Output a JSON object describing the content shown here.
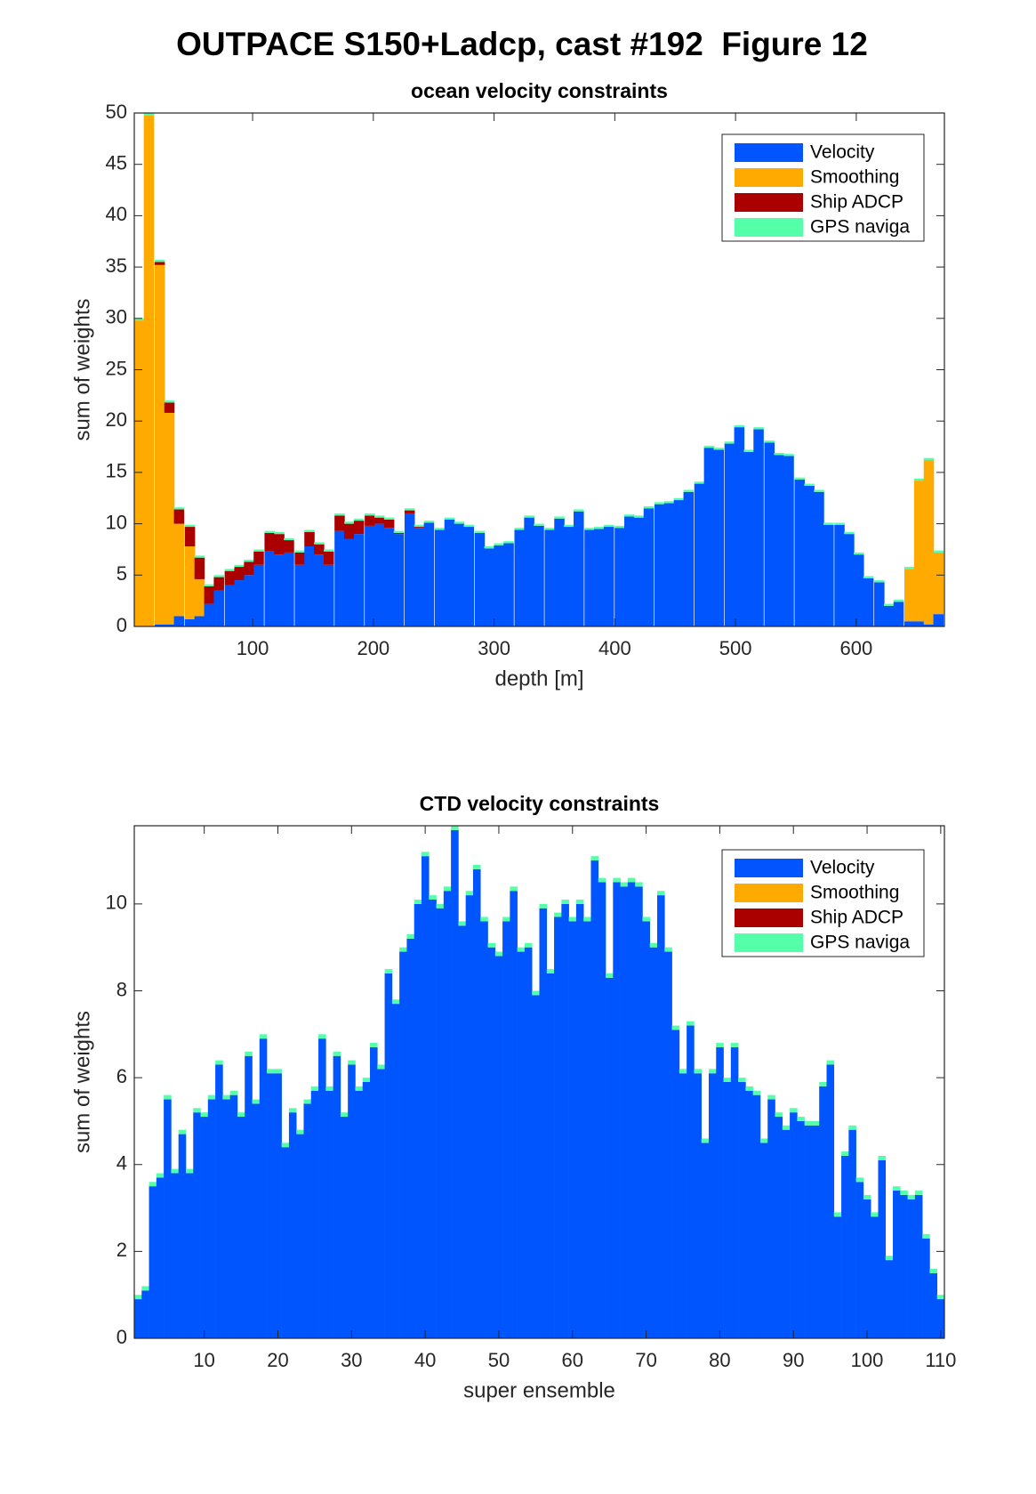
{
  "title": "OUTPACE S150+Ladcp, cast #192  Figure 12",
  "chart_data": [
    {
      "type": "bar",
      "stacked": true,
      "title": "ocean velocity constraints",
      "xlabel": "depth [m]",
      "ylabel": "sum of weights",
      "x": [
        6,
        14,
        23,
        31,
        39,
        48,
        56,
        64,
        72,
        81,
        89,
        97,
        105,
        114,
        122,
        130,
        139,
        147,
        155,
        163,
        172,
        180,
        188,
        197,
        205,
        213,
        221,
        230,
        238,
        246,
        255,
        263,
        271,
        279,
        288,
        296,
        304,
        312,
        321,
        329,
        337,
        346,
        354,
        362,
        370,
        379,
        387,
        395,
        404,
        412,
        420,
        428,
        437,
        445,
        453,
        461,
        470,
        478,
        486,
        495,
        503,
        511,
        519,
        528,
        536,
        544,
        553,
        561,
        569,
        577,
        586,
        594,
        602,
        610,
        619,
        627,
        635,
        644,
        652,
        660,
        668
      ],
      "xlim": [
        2,
        673
      ],
      "xticks": [
        100,
        200,
        300,
        400,
        500,
        600
      ],
      "ylim": [
        0,
        50
      ],
      "yticks": [
        0,
        5,
        10,
        15,
        20,
        25,
        30,
        35,
        40,
        45,
        50
      ],
      "legend": "upper right",
      "series": [
        {
          "name": "Velocity",
          "color": "#0055ff",
          "values": [
            0,
            0,
            0.2,
            0.2,
            1,
            0.7,
            1,
            2.2,
            3.5,
            4,
            4.5,
            5,
            6,
            7.3,
            7,
            7.2,
            6,
            7.8,
            7,
            6,
            9.3,
            8.5,
            9,
            9.8,
            10,
            9.6,
            9,
            11,
            9.6,
            10.1,
            9.4,
            10.4,
            10,
            9.7,
            9.1,
            7.6,
            7.9,
            8.1,
            9.4,
            10.6,
            9.8,
            9.4,
            10.5,
            9.7,
            11.2,
            9.4,
            9.5,
            9.7,
            9.6,
            10.7,
            10.6,
            11.5,
            11.9,
            12,
            12.3,
            13.1,
            13.9,
            17.4,
            17.2,
            17.8,
            19.4,
            17,
            19.2,
            17.9,
            16.7,
            16.6,
            14.3,
            13.7,
            13.1,
            9.9,
            9.9,
            9,
            7,
            4.7,
            4.3,
            2,
            2.4,
            0.5,
            0.5,
            0.2,
            1.2
          ]
        },
        {
          "name": "Smoothing",
          "color": "#ffaa00",
          "values": [
            29.8,
            49.8,
            35,
            20.6,
            9,
            7.1,
            3.6,
            0,
            0,
            0,
            0,
            0,
            0,
            0,
            0,
            0,
            0,
            0,
            0,
            0,
            0,
            0,
            0,
            0,
            0,
            0,
            0,
            0,
            0,
            0,
            0,
            0,
            0,
            0,
            0,
            0,
            0,
            0,
            0,
            0,
            0,
            0,
            0,
            0,
            0,
            0,
            0,
            0,
            0,
            0,
            0,
            0,
            0,
            0,
            0,
            0,
            0,
            0,
            0,
            0,
            0,
            0,
            0,
            0,
            0,
            0,
            0,
            0,
            0,
            0,
            0,
            0,
            0,
            0,
            0,
            0,
            0,
            5.1,
            13.7,
            16,
            6
          ]
        },
        {
          "name": "Ship ADCP",
          "color": "#aa0000",
          "values": [
            0,
            0,
            0.3,
            1,
            1.4,
            1.9,
            2.1,
            1.7,
            1.3,
            1.4,
            1.3,
            1.3,
            1.3,
            1.8,
            2,
            1.2,
            1.2,
            1.4,
            1,
            1.3,
            1.5,
            1.5,
            1.3,
            1,
            0.6,
            0.8,
            0.1,
            0.3,
            0.1,
            0,
            0,
            0,
            0,
            0,
            0,
            0,
            0,
            0,
            0,
            0,
            0,
            0,
            0,
            0,
            0,
            0,
            0,
            0,
            0,
            0,
            0,
            0,
            0,
            0,
            0,
            0,
            0,
            0,
            0,
            0,
            0,
            0,
            0,
            0,
            0,
            0,
            0,
            0,
            0,
            0,
            0,
            0,
            0,
            0,
            0,
            0,
            0,
            0,
            0,
            0,
            0
          ]
        },
        {
          "name": "GPS naviga",
          "color": "#55ffaa",
          "values": [
            0.2,
            0.2,
            0.2,
            0.2,
            0.2,
            0.2,
            0.2,
            0.2,
            0.2,
            0.2,
            0.2,
            0.2,
            0.2,
            0.2,
            0.2,
            0.2,
            0.2,
            0.2,
            0.2,
            0.2,
            0.2,
            0.2,
            0.2,
            0.2,
            0.2,
            0.2,
            0.2,
            0.2,
            0.2,
            0.2,
            0.2,
            0.2,
            0.2,
            0.2,
            0.2,
            0.2,
            0.2,
            0.2,
            0.2,
            0.2,
            0.2,
            0.2,
            0.2,
            0.2,
            0.2,
            0.2,
            0.2,
            0.2,
            0.2,
            0.2,
            0.2,
            0.2,
            0.2,
            0.2,
            0.2,
            0.2,
            0.2,
            0.2,
            0.2,
            0.2,
            0.2,
            0.2,
            0.2,
            0.2,
            0.2,
            0.2,
            0.2,
            0.2,
            0.2,
            0.2,
            0.2,
            0.2,
            0.2,
            0.2,
            0.2,
            0.2,
            0.2,
            0.2,
            0.2,
            0.2,
            0.2
          ]
        }
      ]
    },
    {
      "type": "bar",
      "stacked": true,
      "title": "CTD velocity constraints",
      "xlabel": "super ensemble",
      "ylabel": "sum of weights",
      "x": [
        1,
        2,
        3,
        4,
        5,
        6,
        7,
        8,
        9,
        10,
        11,
        12,
        13,
        14,
        15,
        16,
        17,
        18,
        19,
        20,
        21,
        22,
        23,
        24,
        25,
        26,
        27,
        28,
        29,
        30,
        31,
        32,
        33,
        34,
        35,
        36,
        37,
        38,
        39,
        40,
        41,
        42,
        43,
        44,
        45,
        46,
        47,
        48,
        49,
        50,
        51,
        52,
        53,
        54,
        55,
        56,
        57,
        58,
        59,
        60,
        61,
        62,
        63,
        64,
        65,
        66,
        67,
        68,
        69,
        70,
        71,
        72,
        73,
        74,
        75,
        76,
        77,
        78,
        79,
        80,
        81,
        82,
        83,
        84,
        85,
        86,
        87,
        88,
        89,
        90,
        91,
        92,
        93,
        94,
        95,
        96,
        97,
        98,
        99,
        100,
        101,
        102,
        103,
        104,
        105,
        106,
        107,
        108,
        109,
        110
      ],
      "xlim": [
        0.5,
        110.5
      ],
      "xticks": [
        10,
        20,
        30,
        40,
        50,
        60,
        70,
        80,
        90,
        100,
        110
      ],
      "ylim": [
        0,
        11.8
      ],
      "yticks": [
        0,
        2,
        4,
        6,
        8,
        10
      ],
      "legend": "upper right",
      "series": [
        {
          "name": "Velocity",
          "color": "#0055ff",
          "values": [
            0.9,
            1.1,
            3.5,
            3.7,
            5.5,
            3.8,
            4.7,
            3.8,
            5.2,
            5.1,
            5.5,
            6.3,
            5.5,
            5.6,
            5.1,
            6.5,
            5.4,
            6.9,
            6.1,
            6.1,
            4.4,
            5.2,
            4.7,
            5.4,
            5.7,
            6.9,
            5.7,
            6.5,
            5.1,
            6.3,
            5.7,
            5.9,
            6.7,
            6.2,
            8.4,
            7.7,
            8.9,
            9.2,
            10,
            11.1,
            10.1,
            9.9,
            10.3,
            11.7,
            9.5,
            10.2,
            10.8,
            9.6,
            9,
            8.8,
            9.6,
            10.3,
            8.9,
            9,
            7.9,
            9.9,
            8.4,
            9.7,
            10,
            9.6,
            10,
            9.6,
            11,
            10.5,
            8.3,
            10.5,
            10.4,
            10.5,
            10.4,
            9.6,
            9,
            10.2,
            8.9,
            7.1,
            6.1,
            7.2,
            6.1,
            4.5,
            6.1,
            6.7,
            5.9,
            6.7,
            5.9,
            5.7,
            5.6,
            4.5,
            5.5,
            5.1,
            4.8,
            5.2,
            5,
            4.9,
            4.9,
            5.8,
            6.3,
            2.8,
            4.2,
            4.8,
            3.6,
            3.2,
            2.8,
            4.1,
            1.8,
            3.4,
            3.3,
            3.2,
            3.3,
            2.3,
            1.5,
            0.9
          ]
        },
        {
          "name": "Smoothing",
          "color": "#ffaa00",
          "values": [
            0,
            0,
            0,
            0,
            0,
            0,
            0,
            0,
            0,
            0,
            0,
            0,
            0,
            0,
            0,
            0,
            0,
            0,
            0,
            0,
            0,
            0,
            0,
            0,
            0,
            0,
            0,
            0,
            0,
            0,
            0,
            0,
            0,
            0,
            0,
            0,
            0,
            0,
            0,
            0,
            0,
            0,
            0,
            0,
            0,
            0,
            0,
            0,
            0,
            0,
            0,
            0,
            0,
            0,
            0,
            0,
            0,
            0,
            0,
            0,
            0,
            0,
            0,
            0,
            0,
            0,
            0,
            0,
            0,
            0,
            0,
            0,
            0,
            0,
            0,
            0,
            0,
            0,
            0,
            0,
            0,
            0,
            0,
            0,
            0,
            0,
            0,
            0,
            0,
            0,
            0,
            0,
            0,
            0,
            0,
            0,
            0,
            0,
            0,
            0,
            0,
            0,
            0,
            0,
            0,
            0,
            0,
            0,
            0,
            0
          ]
        },
        {
          "name": "Ship ADCP",
          "color": "#aa0000",
          "values": [
            0,
            0,
            0,
            0,
            0,
            0,
            0,
            0,
            0,
            0,
            0,
            0,
            0,
            0,
            0,
            0,
            0,
            0,
            0,
            0,
            0,
            0,
            0,
            0,
            0,
            0,
            0,
            0,
            0,
            0,
            0,
            0,
            0,
            0,
            0,
            0,
            0,
            0,
            0,
            0,
            0,
            0,
            0,
            0,
            0,
            0,
            0,
            0,
            0,
            0,
            0,
            0,
            0,
            0,
            0,
            0,
            0,
            0,
            0,
            0,
            0,
            0,
            0,
            0,
            0,
            0,
            0,
            0,
            0,
            0,
            0,
            0,
            0,
            0,
            0,
            0,
            0,
            0,
            0,
            0,
            0,
            0,
            0,
            0,
            0,
            0,
            0,
            0,
            0,
            0,
            0,
            0,
            0,
            0,
            0,
            0,
            0,
            0,
            0,
            0,
            0,
            0,
            0,
            0,
            0,
            0,
            0,
            0,
            0,
            0
          ]
        },
        {
          "name": "GPS naviga",
          "color": "#55ffaa",
          "values": [
            0.1,
            0.1,
            0.1,
            0.1,
            0.1,
            0.1,
            0.1,
            0.1,
            0.1,
            0.1,
            0.1,
            0.1,
            0.1,
            0.1,
            0.1,
            0.1,
            0.1,
            0.1,
            0.1,
            0.1,
            0.1,
            0.1,
            0.1,
            0.1,
            0.1,
            0.1,
            0.1,
            0.1,
            0.1,
            0.1,
            0.1,
            0.1,
            0.1,
            0.1,
            0.1,
            0.1,
            0.1,
            0.1,
            0.1,
            0.1,
            0.1,
            0.1,
            0.1,
            0.1,
            0.1,
            0.1,
            0.1,
            0.1,
            0.1,
            0.1,
            0.1,
            0.1,
            0.1,
            0.1,
            0.1,
            0.1,
            0.1,
            0.1,
            0.1,
            0.1,
            0.1,
            0.1,
            0.1,
            0.1,
            0.1,
            0.1,
            0.1,
            0.1,
            0.1,
            0.1,
            0.1,
            0.1,
            0.1,
            0.1,
            0.1,
            0.1,
            0.1,
            0.1,
            0.1,
            0.1,
            0.1,
            0.1,
            0.1,
            0.1,
            0.1,
            0.1,
            0.1,
            0.1,
            0.1,
            0.1,
            0.1,
            0.1,
            0.1,
            0.1,
            0.1,
            0.1,
            0.1,
            0.1,
            0.1,
            0.1,
            0.1,
            0.1,
            0.1,
            0.1,
            0.1,
            0.1,
            0.1,
            0.1,
            0.1,
            0.1
          ]
        }
      ]
    }
  ]
}
